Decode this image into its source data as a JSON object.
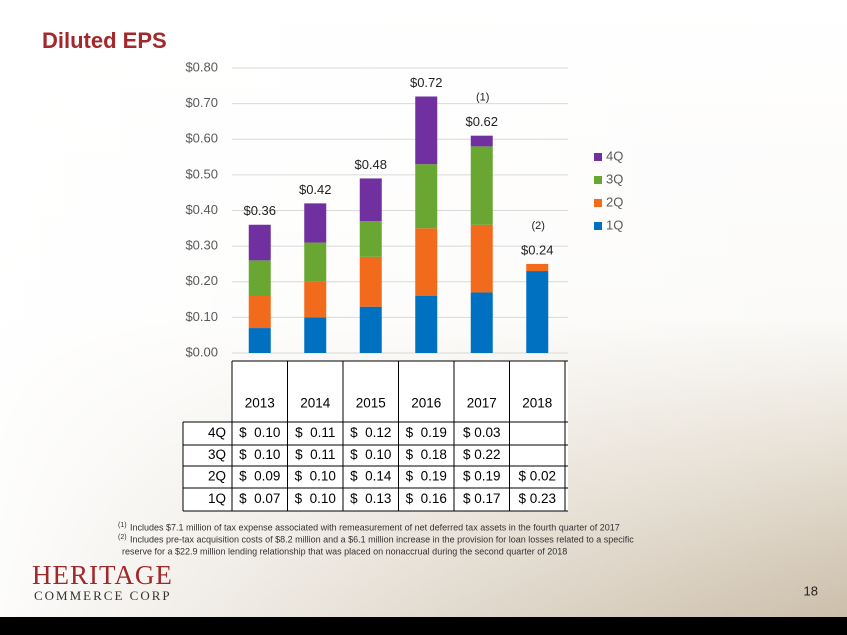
{
  "chart_data": {
    "type": "stacked_bar",
    "title": "Diluted EPS",
    "categories": [
      "2013",
      "2014",
      "2015",
      "2016",
      "2017",
      "2018"
    ],
    "series": [
      {
        "name": "1Q",
        "color": "#0070c0",
        "values": [
          0.07,
          0.1,
          0.13,
          0.16,
          0.17,
          0.23
        ],
        "value_labels": [
          "$  0.07",
          "$  0.10",
          "$  0.13",
          "$  0.16",
          "$ 0.17",
          "$ 0.23"
        ]
      },
      {
        "name": "2Q",
        "color": "#f26a1b",
        "values": [
          0.09,
          0.1,
          0.14,
          0.19,
          0.19,
          0.02
        ],
        "value_labels": [
          "$  0.09",
          "$  0.10",
          "$  0.14",
          "$  0.19",
          "$ 0.19",
          "$ 0.02"
        ]
      },
      {
        "name": "3Q",
        "color": "#69a632",
        "values": [
          0.1,
          0.11,
          0.1,
          0.18,
          0.22,
          null
        ],
        "value_labels": [
          "$  0.10",
          "$  0.11",
          "$  0.10",
          "$  0.18",
          "$ 0.22",
          null
        ]
      },
      {
        "name": "4Q",
        "color": "#7030a0",
        "values": [
          0.1,
          0.11,
          0.12,
          0.19,
          0.03,
          null
        ],
        "value_labels": [
          "$  0.10",
          "$  0.11",
          "$  0.12",
          "$  0.19",
          "$ 0.03",
          null
        ]
      }
    ],
    "total_labels": [
      "$0.36",
      "$0.42",
      "$0.48",
      "$0.72",
      "$0.62",
      "$0.24"
    ],
    "annotations": [
      {
        "x": "2017",
        "text": "(1)"
      },
      {
        "x": "2018",
        "text": "(2)"
      }
    ],
    "ylim": [
      0,
      0.8
    ],
    "yticks": [
      {
        "value": 0,
        "label": "$0.00"
      },
      {
        "value": 0.1,
        "label": "$0.10"
      },
      {
        "value": 0.2,
        "label": "$0.20"
      },
      {
        "value": 0.3,
        "label": "$0.30"
      },
      {
        "value": 0.4,
        "label": "$0.40"
      },
      {
        "value": 0.5,
        "label": "$0.50"
      },
      {
        "value": 0.6,
        "label": "$0.60"
      },
      {
        "value": 0.7,
        "label": "$0.70"
      },
      {
        "value": 0.8,
        "label": "$0.80"
      }
    ],
    "grid": true,
    "legend": "right"
  },
  "footnotes": [
    {
      "marker": "(1)",
      "lines": [
        "Includes $7.1 million of tax expense associated with remeasurement of net deferred tax assets in the fourth quarter of 2017"
      ]
    },
    {
      "marker": "(2)",
      "lines": [
        "Includes pre-tax acquisition costs of $8.2 million and a $6.1 million increase in the provision for loan losses related to a specific",
        "reserve for a $22.9 million lending relationship that was placed on nonaccrual during the second quarter of 2018"
      ]
    }
  ],
  "logo": {
    "name": "HERITAGE",
    "subtitle": "COMMERCE CORP"
  },
  "page_number": "18"
}
